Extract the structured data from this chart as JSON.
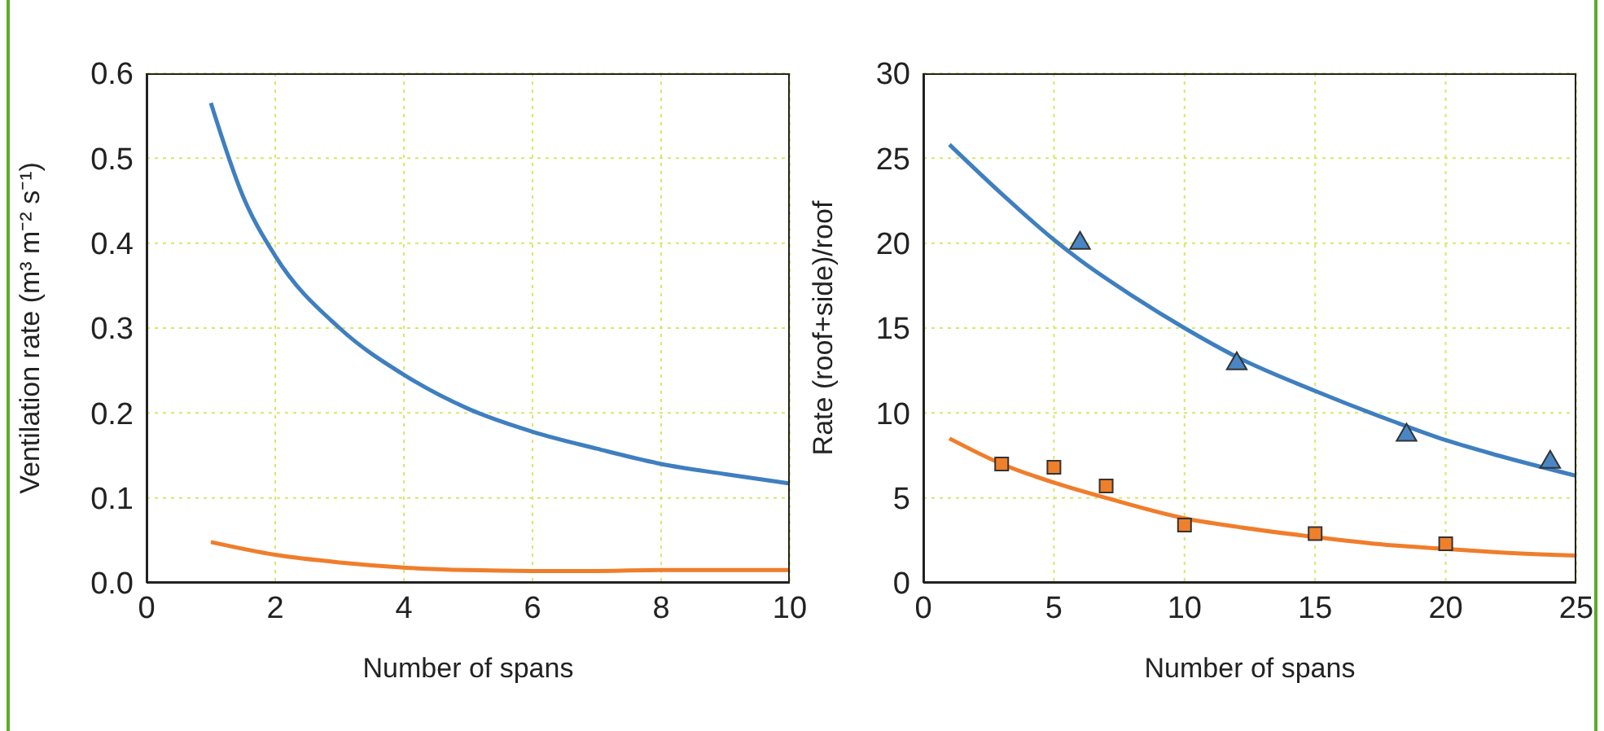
{
  "chart_data": [
    {
      "type": "line",
      "xlabel": "Number of spans",
      "ylabel": "Ventilation rate (m³ m⁻² s⁻¹)",
      "xlim": [
        0,
        10
      ],
      "xticks": [
        0,
        2,
        4,
        6,
        8,
        10
      ],
      "ylim": [
        0,
        0.6
      ],
      "yticks": [
        {
          "value": 0,
          "label": "0.0"
        },
        0.1,
        0.2,
        0.3,
        0.4,
        0.5,
        0.6
      ],
      "grid": true,
      "marker": "none",
      "line_style": "solid",
      "series": [
        {
          "color": "#3f7fc0",
          "x": [
            1,
            1.5,
            2,
            3,
            4,
            5,
            6,
            7,
            8,
            9,
            10
          ],
          "values": [
            0.565,
            0.455,
            0.385,
            0.3,
            0.245,
            0.205,
            0.178,
            0.158,
            0.14,
            0.128,
            0.117
          ]
        },
        {
          "color": "#f07d2b",
          "x": [
            1,
            2,
            3,
            4,
            5,
            6,
            7,
            8,
            9,
            10
          ],
          "values": [
            0.048,
            0.033,
            0.024,
            0.018,
            0.015,
            0.014,
            0.014,
            0.015,
            0.015,
            0.015
          ]
        }
      ]
    },
    {
      "type": "line",
      "xlabel": "Number of spans",
      "ylabel": "Rate (roof+side)/roof",
      "xlim": [
        0,
        25
      ],
      "xticks": [
        0,
        5,
        10,
        15,
        20,
        25
      ],
      "ylim": [
        0,
        30
      ],
      "yticks": [
        0,
        5,
        10,
        15,
        20,
        25,
        30
      ],
      "grid": true,
      "line_style": "solid",
      "series": [
        {
          "type": "line",
          "marker": "none",
          "color": "#3f7fc0",
          "x": [
            1,
            3,
            5,
            6,
            8,
            10,
            12,
            15,
            18,
            20,
            22,
            25
          ],
          "values": [
            25.8,
            22.9,
            20.2,
            19.0,
            16.9,
            15.0,
            13.3,
            11.3,
            9.5,
            8.4,
            7.5,
            6.3
          ]
        },
        {
          "type": "line",
          "marker": "none",
          "color": "#f07d2b",
          "x": [
            1,
            3,
            5,
            7,
            10,
            12,
            15,
            18,
            20,
            22,
            25
          ],
          "values": [
            8.5,
            7.0,
            5.9,
            5.0,
            3.8,
            3.3,
            2.7,
            2.2,
            2.0,
            1.8,
            1.6
          ]
        },
        {
          "type": "scatter",
          "marker": "triangle",
          "color": "#4a86c5",
          "x": [
            6,
            12,
            18.5,
            24
          ],
          "values": [
            20,
            12.9,
            8.7,
            7.1
          ]
        },
        {
          "type": "scatter",
          "marker": "square",
          "color": "#f07f2a",
          "x": [
            3,
            5,
            7,
            10,
            15,
            20
          ],
          "values": [
            7.0,
            6.8,
            5.7,
            3.4,
            2.9,
            2.3
          ]
        }
      ]
    }
  ]
}
